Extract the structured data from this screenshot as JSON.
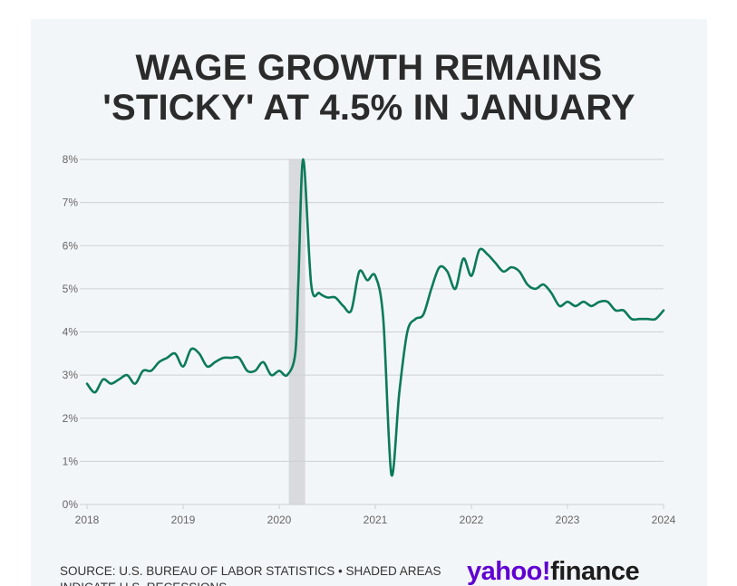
{
  "title_line1": "WAGE GROWTH REMAINS",
  "title_line2": "'STICKY' AT 4.5% IN JANUARY",
  "source": "SOURCE: U.S. BUREAU OF LABOR STATISTICS • SHADED AREAS INDICATE U.S. RECESSIONS",
  "logo": {
    "brand": "yahoo!",
    "product": "finance",
    "brand_color": "#6001d2",
    "product_color": "#1d1d1d"
  },
  "colors": {
    "line": "#0b7a5a",
    "recession": "#d9dadd",
    "grid": "#cdd0d4",
    "background": "#f3f6f9"
  },
  "chart_data": {
    "type": "line",
    "title": "WAGE GROWTH REMAINS 'STICKY' AT 4.5% IN JANUARY",
    "xlabel": "",
    "ylabel": "",
    "xlim": [
      2018,
      2024
    ],
    "ylim": [
      0,
      8
    ],
    "y_ticks": [
      0,
      1,
      2,
      3,
      4,
      5,
      6,
      7,
      8
    ],
    "y_tick_labels": [
      "0%",
      "1%",
      "2%",
      "3%",
      "4%",
      "5%",
      "6%",
      "7%",
      "8%"
    ],
    "x_ticks": [
      2018,
      2019,
      2020,
      2021,
      2022,
      2023,
      2024
    ],
    "x_tick_labels": [
      "2018",
      "2019",
      "2020",
      "2021",
      "2022",
      "2023",
      "2024"
    ],
    "grid": "horizontal",
    "recession_shading": [
      {
        "start": 2020.1,
        "end": 2020.27
      }
    ],
    "series": [
      {
        "x": [
          2018.0,
          2018.083,
          2018.167,
          2018.25,
          2018.333,
          2018.417,
          2018.5,
          2018.583,
          2018.667,
          2018.75,
          2018.833,
          2018.917,
          2019.0,
          2019.083,
          2019.167,
          2019.25,
          2019.333,
          2019.417,
          2019.5,
          2019.583,
          2019.667,
          2019.75,
          2019.833,
          2019.917,
          2020.0,
          2020.083,
          2020.167,
          2020.2,
          2020.25,
          2020.333,
          2020.417,
          2020.5,
          2020.583,
          2020.667,
          2020.75,
          2020.833,
          2020.917,
          2021.0,
          2021.083,
          2021.167,
          2021.25,
          2021.333,
          2021.417,
          2021.5,
          2021.583,
          2021.667,
          2021.75,
          2021.833,
          2021.917,
          2022.0,
          2022.083,
          2022.167,
          2022.25,
          2022.333,
          2022.417,
          2022.5,
          2022.583,
          2022.667,
          2022.75,
          2022.833,
          2022.917,
          2023.0,
          2023.083,
          2023.167,
          2023.25,
          2023.333,
          2023.417,
          2023.5,
          2023.583,
          2023.667,
          2023.75,
          2023.833,
          2023.917,
          2024.0
        ],
        "y": [
          2.8,
          2.6,
          2.9,
          2.8,
          2.9,
          3.0,
          2.8,
          3.1,
          3.1,
          3.3,
          3.4,
          3.5,
          3.2,
          3.6,
          3.5,
          3.2,
          3.3,
          3.4,
          3.4,
          3.4,
          3.1,
          3.1,
          3.3,
          3.0,
          3.1,
          3.0,
          3.5,
          5.2,
          8.0,
          5.1,
          4.9,
          4.8,
          4.8,
          4.6,
          4.5,
          5.4,
          5.2,
          5.3,
          4.3,
          0.7,
          2.6,
          4.0,
          4.3,
          4.4,
          5.0,
          5.5,
          5.4,
          5.0,
          5.7,
          5.3,
          5.9,
          5.8,
          5.6,
          5.4,
          5.5,
          5.4,
          5.1,
          5.0,
          5.1,
          4.9,
          4.6,
          4.7,
          4.6,
          4.7,
          4.6,
          4.7,
          4.7,
          4.5,
          4.5,
          4.3,
          4.3,
          4.3,
          4.3,
          4.5
        ]
      }
    ]
  }
}
